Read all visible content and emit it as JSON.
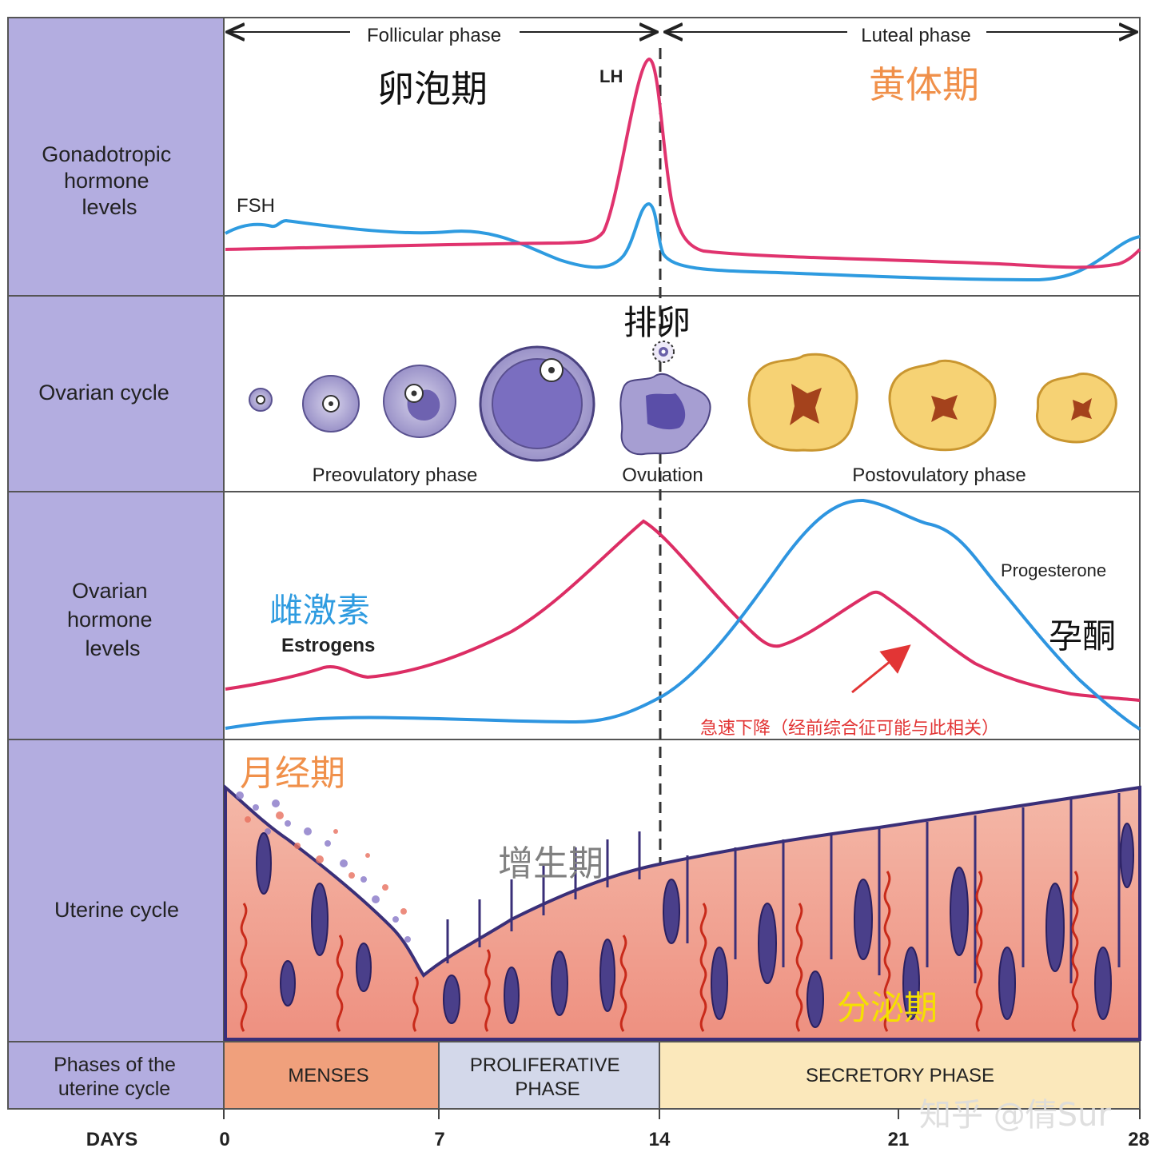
{
  "colors": {
    "sidebar": "#b3ade0",
    "lh": "#e0336e",
    "fsh": "#2e9be0",
    "estrogen": "#dc2d64",
    "progesterone": "#2e95e0",
    "menses": "#f0a07c",
    "proliferative": "#d3d8ea",
    "secretory": "#fbe8bb",
    "orange_text": "#f0904a",
    "yellow_text": "#f5e000",
    "red_note": "#e23535"
  },
  "header": {
    "follicular": "Follicular phase",
    "luteal": "Luteal phase"
  },
  "rows": {
    "gonadotropic": "Gonadotropic\nhormone\nlevels",
    "ovarian_cycle": "Ovarian cycle",
    "ovarian_hormone": "Ovarian\nhormone\nlevels",
    "uterine_cycle": "Uterine cycle",
    "phases": "Phases of the\nuterine cycle",
    "days": "DAYS"
  },
  "annotations": {
    "follicular_cn": "卵泡期",
    "luteal_cn": "黄体期",
    "lh": "LH",
    "fsh": "FSH",
    "ovulation_cn": "排卵",
    "preovulatory": "Preovulatory phase",
    "ovulation": "Ovulation",
    "postovulatory": "Postovulatory phase",
    "estrogen_cn": "雌激素",
    "estrogens": "Estrogens",
    "progesterone": "Progesterone",
    "progesterone_cn": "孕酮",
    "drop_note": "急速下降（经前综合征可能与此相关）",
    "menstrual_cn": "月经期",
    "proliferative_cn": "增生期",
    "secretory_cn": "分泌期"
  },
  "phase_bar": {
    "menses": "MENSES",
    "proliferative": "PROLIFERATIVE\nPHASE",
    "secretory": "SECRETORY PHASE"
  },
  "day_ticks": [
    "0",
    "7",
    "14",
    "21",
    "28"
  ],
  "watermark": "知乎 @倩Sur"
}
